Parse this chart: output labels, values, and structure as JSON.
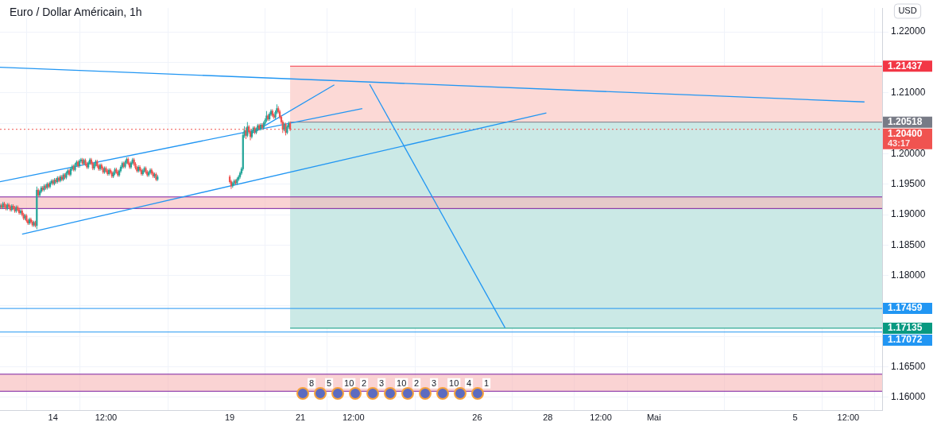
{
  "chart_data": {
    "type": "candlestick",
    "title": "Euro / Dollar Américain, 1h",
    "x": [
      "--04-12T12:00",
      "--04-12T13:00",
      "--04-12T14:00",
      "--04-12T15:00",
      "--04-12T16:00",
      "--04-12T17:00",
      "--04-12T18:00",
      "--04-12T19:00",
      "--04-12T20:00",
      "--04-12T21:00",
      "--04-12T22:00",
      "--04-12T23:00",
      "--04-13T00:00",
      "--04-13T01:00",
      "--04-13T02:00",
      "--04-13T03:00",
      "--04-13T04:00",
      "--04-13T05:00",
      "--04-13T06:00",
      "--04-13T07:00",
      "--04-13T08:00",
      "--04-13T09:00",
      "--04-13T10:00",
      "--04-13T11:00",
      "--04-13T12:00",
      "--04-13T13:00",
      "--04-13T14:00",
      "--04-13T15:00",
      "--04-13T16:00",
      "--04-13T17:00",
      "--04-13T18:00",
      "--04-13T19:00",
      "--04-13T20:00",
      "--04-13T21:00",
      "--04-13T22:00",
      "--04-13T23:00",
      "--04-14T00:00",
      "--04-14T01:00",
      "--04-14T02:00",
      "--04-14T03:00",
      "--04-14T04:00",
      "--04-14T05:00",
      "--04-14T06:00",
      "--04-14T07:00",
      "--04-14T08:00",
      "--04-14T09:00",
      "--04-14T10:00",
      "--04-14T11:00",
      "--04-14T12:00",
      "--04-14T13:00",
      "--04-14T14:00",
      "--04-14T15:00",
      "--04-14T16:00",
      "--04-14T17:00",
      "--04-14T18:00",
      "--04-14T19:00",
      "--04-14T20:00",
      "--04-14T21:00",
      "--04-14T22:00",
      "--04-14T23:00",
      "--04-15T00:00",
      "--04-15T01:00",
      "--04-15T02:00",
      "--04-15T03:00",
      "--04-15T04:00",
      "--04-15T05:00",
      "--04-15T06:00",
      "--04-15T07:00",
      "--04-15T08:00",
      "--04-15T09:00",
      "--04-15T10:00",
      "--04-15T11:00",
      "--04-15T12:00",
      "--04-15T13:00",
      "--04-15T14:00",
      "--04-15T15:00",
      "--04-15T16:00",
      "--04-15T17:00",
      "--04-15T18:00",
      "--04-15T19:00",
      "--04-15T20:00",
      "--04-15T21:00",
      "--04-15T22:00",
      "--04-15T23:00",
      "--04-16T00:00",
      "--04-16T01:00",
      "--04-16T02:00",
      "--04-16T03:00",
      "--04-16T04:00",
      "--04-16T05:00",
      "--04-16T06:00",
      "--04-16T07:00",
      "--04-16T08:00",
      "--04-16T09:00",
      "--04-16T10:00",
      "--04-16T11:00",
      "--04-16T12:00",
      "--04-16T13:00",
      "--04-16T14:00",
      "--04-16T15:00",
      "--04-16T16:00",
      "--04-16T17:00",
      "--04-16T18:00",
      "--04-16T19:00",
      "--04-16T20:00",
      "--04-16T21:00",
      "--04-16T22:00",
      "--04-16T23:00",
      "--04-19T00:00",
      "--04-19T01:00",
      "--04-19T02:00",
      "--04-19T03:00",
      "--04-19T04:00",
      "--04-19T05:00",
      "--04-19T06:00",
      "--04-19T07:00",
      "--04-19T08:00",
      "--04-19T09:00",
      "--04-19T10:00",
      "--04-19T11:00",
      "--04-19T12:00",
      "--04-19T13:00",
      "--04-19T14:00",
      "--04-19T15:00",
      "--04-19T16:00",
      "--04-19T17:00",
      "--04-19T18:00",
      "--04-19T19:00",
      "--04-19T20:00",
      "--04-19T21:00",
      "--04-19T22:00",
      "--04-19T23:00",
      "--04-20T00:00",
      "--04-20T01:00",
      "--04-20T02:00",
      "--04-20T03:00",
      "--04-20T04:00",
      "--04-20T05:00",
      "--04-20T06:00",
      "--04-20T07:00",
      "--04-20T08:00",
      "--04-20T09:00",
      "--04-20T10:00",
      "--04-20T11:00",
      "--04-20T12:00",
      "--04-20T13:00",
      "--04-20T14:00",
      "--04-20T15:00",
      "--04-20T16:00",
      "--04-20T17:00"
    ],
    "ohlc": [
      [
        1.1912,
        1.1918,
        1.1909,
        1.1915
      ],
      [
        1.1915,
        1.1918,
        1.1909,
        1.1912
      ],
      [
        1.1912,
        1.1921,
        1.1909,
        1.1918
      ],
      [
        1.1918,
        1.1921,
        1.1911,
        1.1914
      ],
      [
        1.1914,
        1.1917,
        1.1907,
        1.191
      ],
      [
        1.191,
        1.1919,
        1.1907,
        1.1916
      ],
      [
        1.1916,
        1.1919,
        1.191,
        1.1913
      ],
      [
        1.1913,
        1.1916,
        1.1905,
        1.1908
      ],
      [
        1.1908,
        1.1917,
        1.1905,
        1.1914
      ],
      [
        1.1914,
        1.1917,
        1.1908,
        1.1911
      ],
      [
        1.1911,
        1.1914,
        1.1903,
        1.1906
      ],
      [
        1.1906,
        1.1915,
        1.1903,
        1.1912
      ],
      [
        1.1912,
        1.1915,
        1.1905,
        1.1908
      ],
      [
        1.1908,
        1.1911,
        1.19,
        1.1903
      ],
      [
        1.1903,
        1.1909,
        1.19,
        1.1906
      ],
      [
        1.1906,
        1.1909,
        1.1897,
        1.19
      ],
      [
        1.19,
        1.1903,
        1.1891,
        1.1894
      ],
      [
        1.1894,
        1.1901,
        1.1891,
        1.1898
      ],
      [
        1.1898,
        1.1901,
        1.1887,
        1.189
      ],
      [
        1.189,
        1.1893,
        1.1883,
        1.1886
      ],
      [
        1.1886,
        1.1895,
        1.1883,
        1.1892
      ],
      [
        1.1892,
        1.1895,
        1.1885,
        1.1888
      ],
      [
        1.1888,
        1.1891,
        1.188,
        1.1883
      ],
      [
        1.1883,
        1.189,
        1.188,
        1.1887
      ],
      [
        1.1887,
        1.189,
        1.1879,
        1.1882
      ],
      [
        1.1882,
        1.1946,
        1.1876,
        1.194
      ],
      [
        1.194,
        1.1943,
        1.1929,
        1.1932
      ],
      [
        1.1932,
        1.1941,
        1.1929,
        1.1938
      ],
      [
        1.1938,
        1.1947,
        1.1935,
        1.1944
      ],
      [
        1.1944,
        1.1947,
        1.1938,
        1.1941
      ],
      [
        1.1941,
        1.195,
        1.1938,
        1.1947
      ],
      [
        1.1947,
        1.195,
        1.1941,
        1.1944
      ],
      [
        1.1944,
        1.1953,
        1.1941,
        1.195
      ],
      [
        1.195,
        1.1953,
        1.1943,
        1.1946
      ],
      [
        1.1946,
        1.1955,
        1.1943,
        1.1952
      ],
      [
        1.1952,
        1.1958,
        1.1949,
        1.1955
      ],
      [
        1.1955,
        1.1958,
        1.1948,
        1.1951
      ],
      [
        1.1951,
        1.196,
        1.1948,
        1.1957
      ],
      [
        1.1957,
        1.196,
        1.1951,
        1.1954
      ],
      [
        1.1954,
        1.1963,
        1.1951,
        1.196
      ],
      [
        1.196,
        1.1963,
        1.1953,
        1.1956
      ],
      [
        1.1956,
        1.1965,
        1.1953,
        1.1962
      ],
      [
        1.1962,
        1.1965,
        1.1955,
        1.1958
      ],
      [
        1.1958,
        1.1968,
        1.1955,
        1.1965
      ],
      [
        1.1965,
        1.1968,
        1.1958,
        1.1961
      ],
      [
        1.1961,
        1.1971,
        1.1958,
        1.1968
      ],
      [
        1.1968,
        1.1975,
        1.1965,
        1.1972
      ],
      [
        1.1972,
        1.1975,
        1.1963,
        1.1966
      ],
      [
        1.1966,
        1.1978,
        1.1963,
        1.1975
      ],
      [
        1.1975,
        1.1982,
        1.1972,
        1.1979
      ],
      [
        1.1979,
        1.1982,
        1.1971,
        1.1974
      ],
      [
        1.1974,
        1.1985,
        1.1971,
        1.1982
      ],
      [
        1.1982,
        1.1989,
        1.1979,
        1.1986
      ],
      [
        1.1986,
        1.1989,
        1.1977,
        1.198
      ],
      [
        1.198,
        1.1991,
        1.1977,
        1.1988
      ],
      [
        1.1988,
        1.1993,
        1.1985,
        1.199
      ],
      [
        1.199,
        1.1993,
        1.1981,
        1.1984
      ],
      [
        1.1984,
        1.1992,
        1.1981,
        1.1989
      ],
      [
        1.1989,
        1.1992,
        1.198,
        1.1983
      ],
      [
        1.1983,
        1.1986,
        1.1975,
        1.1978
      ],
      [
        1.1978,
        1.1988,
        1.1975,
        1.1985
      ],
      [
        1.1985,
        1.1993,
        1.1982,
        1.199
      ],
      [
        1.199,
        1.1993,
        1.1981,
        1.1984
      ],
      [
        1.1984,
        1.1987,
        1.1973,
        1.1976
      ],
      [
        1.1976,
        1.1985,
        1.1973,
        1.1982
      ],
      [
        1.1982,
        1.199,
        1.1979,
        1.1987
      ],
      [
        1.1987,
        1.199,
        1.1977,
        1.198
      ],
      [
        1.198,
        1.1983,
        1.1972,
        1.1975
      ],
      [
        1.1975,
        1.1984,
        1.1972,
        1.1981
      ],
      [
        1.1981,
        1.1984,
        1.1973,
        1.1976
      ],
      [
        1.1976,
        1.1979,
        1.1967,
        1.197
      ],
      [
        1.197,
        1.1979,
        1.1967,
        1.1976
      ],
      [
        1.1976,
        1.1979,
        1.1969,
        1.1972
      ],
      [
        1.1972,
        1.1975,
        1.1964,
        1.1967
      ],
      [
        1.1967,
        1.1976,
        1.1964,
        1.1973
      ],
      [
        1.1973,
        1.1976,
        1.1966,
        1.1969
      ],
      [
        1.1969,
        1.1972,
        1.196,
        1.1963
      ],
      [
        1.1963,
        1.1971,
        1.196,
        1.1968
      ],
      [
        1.1968,
        1.1977,
        1.1965,
        1.1974
      ],
      [
        1.1974,
        1.1977,
        1.1967,
        1.197
      ],
      [
        1.197,
        1.1973,
        1.1962,
        1.1965
      ],
      [
        1.1965,
        1.1975,
        1.1962,
        1.1972
      ],
      [
        1.1972,
        1.1981,
        1.1969,
        1.1978
      ],
      [
        1.1978,
        1.1987,
        1.1975,
        1.1984
      ],
      [
        1.1984,
        1.1987,
        1.1976,
        1.1979
      ],
      [
        1.1979,
        1.1989,
        1.1976,
        1.1986
      ],
      [
        1.1986,
        1.1994,
        1.1983,
        1.1991
      ],
      [
        1.1991,
        1.1994,
        1.1981,
        1.1984
      ],
      [
        1.1984,
        1.1987,
        1.1975,
        1.1978
      ],
      [
        1.1978,
        1.1988,
        1.1975,
        1.1985
      ],
      [
        1.1985,
        1.1993,
        1.1982,
        1.199
      ],
      [
        1.199,
        1.1993,
        1.198,
        1.1983
      ],
      [
        1.1983,
        1.1986,
        1.1974,
        1.1977
      ],
      [
        1.1977,
        1.198,
        1.1969,
        1.1972
      ],
      [
        1.1972,
        1.1981,
        1.1969,
        1.1978
      ],
      [
        1.1978,
        1.1981,
        1.197,
        1.1973
      ],
      [
        1.1973,
        1.1976,
        1.1964,
        1.1967
      ],
      [
        1.1967,
        1.1975,
        1.1964,
        1.1972
      ],
      [
        1.1972,
        1.1979,
        1.1969,
        1.1976
      ],
      [
        1.1976,
        1.1979,
        1.1967,
        1.197
      ],
      [
        1.197,
        1.1973,
        1.1962,
        1.1965
      ],
      [
        1.1965,
        1.1972,
        1.1962,
        1.1969
      ],
      [
        1.1969,
        1.1976,
        1.1966,
        1.1973
      ],
      [
        1.1973,
        1.1976,
        1.1965,
        1.1968
      ],
      [
        1.1968,
        1.1971,
        1.196,
        1.1963
      ],
      [
        1.1963,
        1.1969,
        1.196,
        1.1966
      ],
      [
        1.1966,
        1.1969,
        1.1955,
        1.1958
      ],
      [
        1.1958,
        1.1965,
        1.1955,
        1.1962
      ],
      [
        1.1962,
        1.1965,
        1.1951,
        1.1954
      ],
      [
        1.1954,
        1.1957,
        1.1942,
        1.1947
      ],
      [
        1.1947,
        1.1954,
        1.1944,
        1.1951
      ],
      [
        1.1951,
        1.1958,
        1.1948,
        1.1955
      ],
      [
        1.1955,
        1.1958,
        1.1949,
        1.1952
      ],
      [
        1.1952,
        1.1961,
        1.1949,
        1.1958
      ],
      [
        1.1958,
        1.1965,
        1.1955,
        1.1962
      ],
      [
        1.1962,
        1.1971,
        1.1959,
        1.1968
      ],
      [
        1.1968,
        1.1978,
        1.1965,
        1.1975
      ],
      [
        1.1975,
        1.2035,
        1.1972,
        1.203
      ],
      [
        1.203,
        1.2045,
        1.2026,
        1.2038
      ],
      [
        1.2038,
        1.2043,
        1.2024,
        1.203
      ],
      [
        1.203,
        1.2052,
        1.2027,
        1.2044
      ],
      [
        1.2044,
        1.2047,
        1.2033,
        1.2036
      ],
      [
        1.2036,
        1.2039,
        1.2022,
        1.2028
      ],
      [
        1.2028,
        1.204,
        1.2025,
        1.2037
      ],
      [
        1.2037,
        1.2045,
        1.2034,
        1.2042
      ],
      [
        1.2042,
        1.2045,
        1.2032,
        1.2035
      ],
      [
        1.2035,
        1.2043,
        1.2032,
        1.204
      ],
      [
        1.204,
        1.2049,
        1.2037,
        1.2046
      ],
      [
        1.2046,
        1.2049,
        1.2038,
        1.2041
      ],
      [
        1.2041,
        1.205,
        1.2038,
        1.2047
      ],
      [
        1.2047,
        1.205,
        1.204,
        1.2043
      ],
      [
        1.2043,
        1.2053,
        1.204,
        1.205
      ],
      [
        1.205,
        1.2058,
        1.2047,
        1.2055
      ],
      [
        1.2055,
        1.207,
        1.2052,
        1.2062
      ],
      [
        1.2062,
        1.2065,
        1.2054,
        1.2057
      ],
      [
        1.2057,
        1.2068,
        1.2054,
        1.2065
      ],
      [
        1.2065,
        1.2073,
        1.2062,
        1.207
      ],
      [
        1.207,
        1.2073,
        1.206,
        1.2063
      ],
      [
        1.2063,
        1.2066,
        1.2057,
        1.206
      ],
      [
        1.206,
        1.2071,
        1.2057,
        1.2068
      ],
      [
        1.2068,
        1.2081,
        1.2065,
        1.2074
      ],
      [
        1.2074,
        1.2078,
        1.2066,
        1.2069
      ],
      [
        1.2069,
        1.2072,
        1.2057,
        1.206
      ],
      [
        1.206,
        1.2063,
        1.2049,
        1.2052
      ],
      [
        1.2052,
        1.2055,
        1.2034,
        1.204
      ],
      [
        1.204,
        1.2051,
        1.2037,
        1.2048
      ],
      [
        1.2048,
        1.2051,
        1.203,
        1.2035
      ],
      [
        1.2035,
        1.2047,
        1.2032,
        1.2044
      ],
      [
        1.2044,
        1.2053,
        1.2041,
        1.205
      ],
      [
        1.205,
        1.2053,
        1.2037,
        1.204
      ]
    ],
    "series": [
      {
        "type": "line",
        "color": "#2196f3",
        "x": [
          "--04-12T12:00",
          "--05-06T23:00"
        ],
        "values": [
          1.2142,
          1.2085
        ]
      },
      {
        "type": "line",
        "color": "#2196f3",
        "x": [
          "--04-12T12:00",
          "--04-22T18:00"
        ],
        "values": [
          1.1954,
          1.2074
        ]
      },
      {
        "type": "line",
        "color": "#2196f3",
        "x": [
          "--04-13T03:00",
          "--04-27T23:00"
        ],
        "values": [
          1.1868,
          1.2067
        ]
      },
      {
        "type": "line",
        "color": "#2196f3",
        "x": [
          "--04-19T14:00",
          "--04-21T23:00"
        ],
        "values": [
          1.2032,
          1.2113
        ]
      },
      {
        "type": "line",
        "color": "#2196f3",
        "x": [
          "--04-22T23:00",
          "--04-26T19:00"
        ],
        "values": [
          1.2114,
          1.1714
        ]
      }
    ],
    "bands": [
      {
        "axis": "y",
        "from": 1.20518,
        "to": 1.21437,
        "color": "#fcd9d6"
      },
      {
        "axis": "y",
        "from": 1.17135,
        "to": 1.20518,
        "color": "#cbe9e6"
      },
      {
        "axis": "y",
        "from": 1.191,
        "to": 1.1929,
        "color": "#f7b5b5"
      },
      {
        "axis": "y",
        "from": 1.161,
        "to": 1.1638,
        "color": "#f7b5b5"
      }
    ],
    "ref_lines": [
      {
        "axis": "y",
        "value": 1.1929,
        "color": "#7b1fa2",
        "line_style": "solid"
      },
      {
        "axis": "y",
        "value": 1.191,
        "color": "#7b1fa2",
        "line_style": "solid"
      },
      {
        "axis": "y",
        "value": 1.1638,
        "color": "#7b1fa2",
        "line_style": "solid"
      },
      {
        "axis": "y",
        "value": 1.161,
        "color": "#7b1fa2",
        "line_style": "solid"
      },
      {
        "axis": "y",
        "value": 1.21437,
        "label": "1.21437",
        "color": "#f23645"
      },
      {
        "axis": "y",
        "value": 1.20518,
        "label": "1.20518",
        "color": "#787b86"
      },
      {
        "axis": "y",
        "value": 1.204,
        "label": "1.20400\n43:17",
        "color": "#f05350",
        "line_style": "dotted"
      },
      {
        "axis": "y",
        "value": 1.17459,
        "label": "1.17459",
        "color": "#2196f3",
        "line_style": "solid"
      },
      {
        "axis": "y",
        "value": 1.17135,
        "label": "1.17135",
        "color": "#089981"
      },
      {
        "axis": "y",
        "value": 1.17072,
        "label": "1.17072",
        "color": "#2196f3",
        "line_style": "solid"
      }
    ],
    "annotations": [
      "USD",
      "8",
      "5",
      "10",
      "2",
      "3",
      "10",
      "2",
      "3",
      "10",
      "4",
      "1"
    ],
    "xlim": [
      "--04-12T12:00",
      "--05-07T11:00"
    ],
    "xticks": [
      {
        "value": "--04-14",
        "label": "14"
      },
      {
        "value": "--04-15T12:00",
        "label": "12:00"
      },
      {
        "value": "--04-19",
        "label": "19"
      },
      {
        "value": "--04-21",
        "label": "21"
      },
      {
        "value": "--04-22T12:00",
        "label": "12:00"
      },
      {
        "value": "--04-26",
        "label": "26"
      },
      {
        "value": "--04-28",
        "label": "28"
      },
      {
        "value": "--04-29T12:00",
        "label": "12:00"
      },
      {
        "value": "--05-01",
        "label": "Mai"
      },
      {
        "value": "--05-05",
        "label": "5"
      },
      {
        "value": "--05-06T12:00",
        "label": "12:00"
      }
    ],
    "ylim": [
      1.1578,
      1.2239
    ],
    "yticks": [
      {
        "value": 1.16,
        "label": "1.16000"
      },
      {
        "value": 1.165,
        "label": "1.16500"
      },
      {
        "value": 1.17,
        "label": null
      },
      {
        "value": 1.175,
        "label": null
      },
      {
        "value": 1.18,
        "label": "1.18000"
      },
      {
        "value": 1.185,
        "label": "1.18500"
      },
      {
        "value": 1.19,
        "label": "1.19000"
      },
      {
        "value": 1.195,
        "label": "1.19500"
      },
      {
        "value": 1.2,
        "label": "1.20000"
      },
      {
        "value": 1.205,
        "label": null
      },
      {
        "value": 1.21,
        "label": "1.21000"
      },
      {
        "value": 1.215,
        "label": null
      },
      {
        "value": 1.22,
        "label": "1.22000"
      }
    ],
    "grid": true,
    "legend": false
  }
}
